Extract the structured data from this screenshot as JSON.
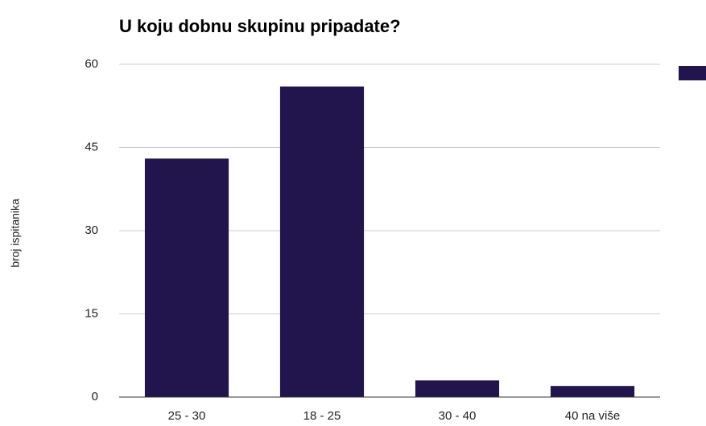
{
  "chart_data": {
    "type": "bar",
    "title": "U koju dobnu skupinu pripadate?",
    "y_label": "broj ispitanika",
    "categories": [
      "25 - 30",
      "18 - 25",
      "30 - 40",
      "40 na više"
    ],
    "values": [
      43,
      56,
      3,
      2
    ],
    "color": "#22144c",
    "ylim": [
      0,
      60
    ],
    "yticks": [
      0,
      15,
      30,
      45,
      60
    ],
    "grid": true
  }
}
